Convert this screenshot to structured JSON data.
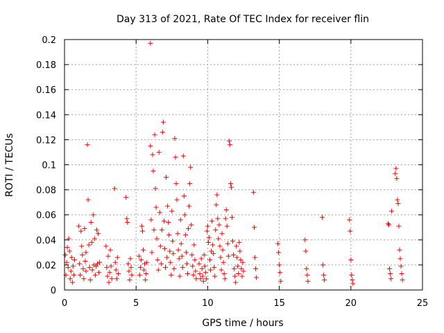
{
  "chart_data": {
    "type": "scatter",
    "title": "Day 313 of 2021, Rate Of TEC Index for receiver flin",
    "xlabel": "GPS time / hours",
    "ylabel": "ROTI / TECUs",
    "xlim": [
      0,
      25
    ],
    "ylim": [
      0,
      0.2
    ],
    "x_ticks": [
      0,
      5,
      10,
      15,
      20,
      25
    ],
    "y_ticks": [
      0,
      0.02,
      0.04,
      0.06,
      0.08,
      0.1,
      0.12,
      0.14,
      0.16,
      0.18,
      0.2
    ],
    "x_tick_labels": [
      "0",
      "5",
      "10",
      "15",
      "20",
      "25"
    ],
    "y_tick_labels": [
      "0",
      "0.02",
      "0.04",
      "0.06",
      "0.08",
      "0.1",
      "0.12",
      "0.14",
      "0.16",
      "0.18",
      "0.2"
    ],
    "grid": true,
    "marker": "+",
    "series": [
      {
        "color": "#ff0000",
        "points": [
          [
            0.05,
            0.028
          ],
          [
            0.1,
            0.012
          ],
          [
            0.15,
            0.022
          ],
          [
            0.2,
            0.034
          ],
          [
            0.25,
            0.018
          ],
          [
            0.3,
            0.041
          ],
          [
            0.35,
            0.031
          ],
          [
            0.4,
            0.009
          ],
          [
            0.45,
            0.015
          ],
          [
            0.5,
            0.026
          ],
          [
            0.55,
            0.006
          ],
          [
            0.6,
            0.019
          ],
          [
            0.65,
            0.012
          ],
          [
            0.7,
            0.024
          ],
          [
            1.0,
            0.051
          ],
          [
            1.05,
            0.021
          ],
          [
            1.1,
            0.012
          ],
          [
            1.15,
            0.047
          ],
          [
            1.2,
            0.035
          ],
          [
            1.25,
            0.028
          ],
          [
            1.3,
            0.017
          ],
          [
            1.35,
            0.009
          ],
          [
            1.4,
            0.049
          ],
          [
            1.45,
            0.023
          ],
          [
            1.5,
            0.015
          ],
          [
            1.5,
            0.03
          ],
          [
            1.6,
            0.116
          ],
          [
            1.65,
            0.072
          ],
          [
            1.7,
            0.036
          ],
          [
            1.75,
            0.018
          ],
          [
            1.8,
            0.008
          ],
          [
            1.85,
            0.054
          ],
          [
            1.9,
            0.038
          ],
          [
            1.95,
            0.016
          ],
          [
            2.0,
            0.06
          ],
          [
            2.05,
            0.02
          ],
          [
            2.1,
            0.041
          ],
          [
            2.15,
            0.012
          ],
          [
            2.2,
            0.019
          ],
          [
            2.25,
            0.048
          ],
          [
            2.3,
            0.021
          ],
          [
            2.35,
            0.045
          ],
          [
            2.4,
            0.014
          ],
          [
            2.45,
            0.022
          ],
          [
            2.9,
            0.035
          ],
          [
            2.95,
            0.018
          ],
          [
            3.0,
            0.011
          ],
          [
            3.05,
            0.027
          ],
          [
            3.1,
            0.006
          ],
          [
            3.15,
            0.014
          ],
          [
            3.2,
            0.032
          ],
          [
            3.25,
            0.019
          ],
          [
            3.3,
            0.009
          ],
          [
            3.5,
            0.081
          ],
          [
            3.55,
            0.022
          ],
          [
            3.6,
            0.016
          ],
          [
            3.65,
            0.009
          ],
          [
            3.7,
            0.026
          ],
          [
            3.75,
            0.013
          ],
          [
            4.3,
            0.074
          ],
          [
            4.35,
            0.057
          ],
          [
            4.4,
            0.054
          ],
          [
            4.45,
            0.021
          ],
          [
            4.5,
            0.015
          ],
          [
            4.55,
            0.008
          ],
          [
            4.6,
            0.025
          ],
          [
            4.65,
            0.018
          ],
          [
            4.7,
            0.012
          ],
          [
            5.2,
            0.027
          ],
          [
            5.25,
            0.012
          ],
          [
            5.3,
            0.018
          ],
          [
            5.35,
            0.024
          ],
          [
            5.4,
            0.051
          ],
          [
            5.45,
            0.047
          ],
          [
            5.5,
            0.032
          ],
          [
            5.55,
            0.016
          ],
          [
            5.6,
            0.021
          ],
          [
            5.65,
            0.008
          ],
          [
            5.7,
            0.013
          ],
          [
            5.75,
            0.022
          ],
          [
            6.0,
            0.197
          ],
          [
            6.0,
            0.115
          ],
          [
            6.05,
            0.056
          ],
          [
            6.1,
            0.03
          ],
          [
            6.15,
            0.108
          ],
          [
            6.2,
            0.095
          ],
          [
            6.25,
            0.048
          ],
          [
            6.3,
            0.124
          ],
          [
            6.35,
            0.081
          ],
          [
            6.4,
            0.066
          ],
          [
            6.45,
            0.041
          ],
          [
            6.5,
            0.024
          ],
          [
            6.55,
            0.016
          ],
          [
            6.6,
            0.11
          ],
          [
            6.65,
            0.062
          ],
          [
            6.7,
            0.035
          ],
          [
            6.75,
            0.021
          ],
          [
            6.8,
            0.048
          ],
          [
            6.85,
            0.126
          ],
          [
            6.9,
            0.134
          ],
          [
            6.95,
            0.055
          ],
          [
            7.0,
            0.033
          ],
          [
            7.05,
            0.018
          ],
          [
            7.1,
            0.09
          ],
          [
            7.15,
            0.026
          ],
          [
            7.2,
            0.067
          ],
          [
            7.25,
            0.054
          ],
          [
            7.3,
            0.044
          ],
          [
            7.35,
            0.031
          ],
          [
            7.4,
            0.022
          ],
          [
            7.45,
            0.012
          ],
          [
            7.5,
            0.063
          ],
          [
            7.55,
            0.039
          ],
          [
            7.6,
            0.029
          ],
          [
            7.65,
            0.017
          ],
          [
            7.7,
            0.121
          ],
          [
            7.75,
            0.106
          ],
          [
            7.8,
            0.085
          ],
          [
            7.85,
            0.072
          ],
          [
            7.9,
            0.045
          ],
          [
            7.95,
            0.032
          ],
          [
            8.0,
            0.025
          ],
          [
            8.05,
            0.011
          ],
          [
            8.1,
            0.056
          ],
          [
            8.15,
            0.037
          ],
          [
            8.2,
            0.027
          ],
          [
            8.25,
            0.018
          ],
          [
            8.3,
            0.107
          ],
          [
            8.35,
            0.075
          ],
          [
            8.4,
            0.06
          ],
          [
            8.45,
            0.044
          ],
          [
            8.5,
            0.03
          ],
          [
            8.55,
            0.021
          ],
          [
            8.6,
            0.013
          ],
          [
            8.65,
            0.049
          ],
          [
            8.7,
            0.067
          ],
          [
            8.75,
            0.085
          ],
          [
            8.8,
            0.098
          ],
          [
            8.85,
            0.052
          ],
          [
            8.9,
            0.028
          ],
          [
            8.95,
            0.019
          ],
          [
            9.0,
            0.012
          ],
          [
            9.05,
            0.036
          ],
          [
            9.1,
            0.024
          ],
          [
            9.15,
            0.015
          ],
          [
            9.2,
            0.009
          ],
          [
            9.4,
            0.021
          ],
          [
            9.45,
            0.013
          ],
          [
            9.5,
            0.009
          ],
          [
            9.55,
            0.025
          ],
          [
            9.6,
            0.017
          ],
          [
            9.65,
            0.011
          ],
          [
            9.7,
            0.007
          ],
          [
            9.75,
            0.028
          ],
          [
            9.8,
            0.019
          ],
          [
            9.85,
            0.014
          ],
          [
            9.9,
            0.009
          ],
          [
            9.95,
            0.047
          ],
          [
            10.0,
            0.051
          ],
          [
            10.05,
            0.038
          ],
          [
            10.1,
            0.042
          ],
          [
            10.15,
            0.024
          ],
          [
            10.2,
            0.016
          ],
          [
            10.25,
            0.031
          ],
          [
            10.3,
            0.055
          ],
          [
            10.35,
            0.036
          ],
          [
            10.4,
            0.029
          ],
          [
            10.45,
            0.018
          ],
          [
            10.5,
            0.011
          ],
          [
            10.55,
            0.048
          ],
          [
            10.6,
            0.068
          ],
          [
            10.65,
            0.076
          ],
          [
            10.7,
            0.057
          ],
          [
            10.75,
            0.041
          ],
          [
            10.8,
            0.052
          ],
          [
            10.85,
            0.035
          ],
          [
            10.9,
            0.026
          ],
          [
            10.95,
            0.016
          ],
          [
            11.0,
            0.045
          ],
          [
            11.05,
            0.032
          ],
          [
            11.1,
            0.022
          ],
          [
            11.15,
            0.013
          ],
          [
            11.2,
            0.009
          ],
          [
            11.25,
            0.057
          ],
          [
            11.3,
            0.064
          ],
          [
            11.35,
            0.051
          ],
          [
            11.4,
            0.037
          ],
          [
            11.45,
            0.027
          ],
          [
            11.5,
            0.119
          ],
          [
            11.55,
            0.116
          ],
          [
            11.6,
            0.085
          ],
          [
            11.65,
            0.082
          ],
          [
            11.7,
            0.058
          ],
          [
            11.75,
            0.039
          ],
          [
            11.8,
            0.028
          ],
          [
            11.85,
            0.017
          ],
          [
            11.9,
            0.011
          ],
          [
            11.95,
            0.006
          ],
          [
            12.0,
            0.035
          ],
          [
            12.05,
            0.026
          ],
          [
            12.1,
            0.019
          ],
          [
            12.15,
            0.013
          ],
          [
            12.2,
            0.038
          ],
          [
            12.25,
            0.031
          ],
          [
            12.3,
            0.024
          ],
          [
            12.35,
            0.017
          ],
          [
            12.4,
            0.011
          ],
          [
            12.45,
            0.022
          ],
          [
            12.5,
            0.015
          ],
          [
            13.2,
            0.078
          ],
          [
            13.25,
            0.05
          ],
          [
            13.3,
            0.026
          ],
          [
            13.35,
            0.017
          ],
          [
            13.4,
            0.01
          ],
          [
            14.9,
            0.037
          ],
          [
            14.95,
            0.03
          ],
          [
            15.0,
            0.02
          ],
          [
            15.05,
            0.014
          ],
          [
            15.1,
            0.007
          ],
          [
            16.8,
            0.04
          ],
          [
            16.85,
            0.031
          ],
          [
            16.9,
            0.017
          ],
          [
            16.95,
            0.012
          ],
          [
            17.0,
            0.007
          ],
          [
            18.0,
            0.058
          ],
          [
            18.05,
            0.02
          ],
          [
            18.1,
            0.012
          ],
          [
            18.15,
            0.008
          ],
          [
            19.9,
            0.056
          ],
          [
            19.95,
            0.047
          ],
          [
            20.0,
            0.024
          ],
          [
            20.05,
            0.012
          ],
          [
            20.1,
            0.008
          ],
          [
            20.15,
            0.005
          ],
          [
            22.6,
            0.053
          ],
          [
            22.65,
            0.052
          ],
          [
            22.7,
            0.017
          ],
          [
            22.75,
            0.013
          ],
          [
            22.8,
            0.009
          ],
          [
            22.85,
            0.063
          ],
          [
            23.1,
            0.093
          ],
          [
            23.15,
            0.097
          ],
          [
            23.2,
            0.089
          ],
          [
            23.25,
            0.072
          ],
          [
            23.3,
            0.069
          ],
          [
            23.35,
            0.051
          ],
          [
            23.4,
            0.032
          ],
          [
            23.45,
            0.025
          ],
          [
            23.5,
            0.019
          ],
          [
            23.55,
            0.013
          ],
          [
            23.6,
            0.008
          ]
        ]
      }
    ]
  }
}
